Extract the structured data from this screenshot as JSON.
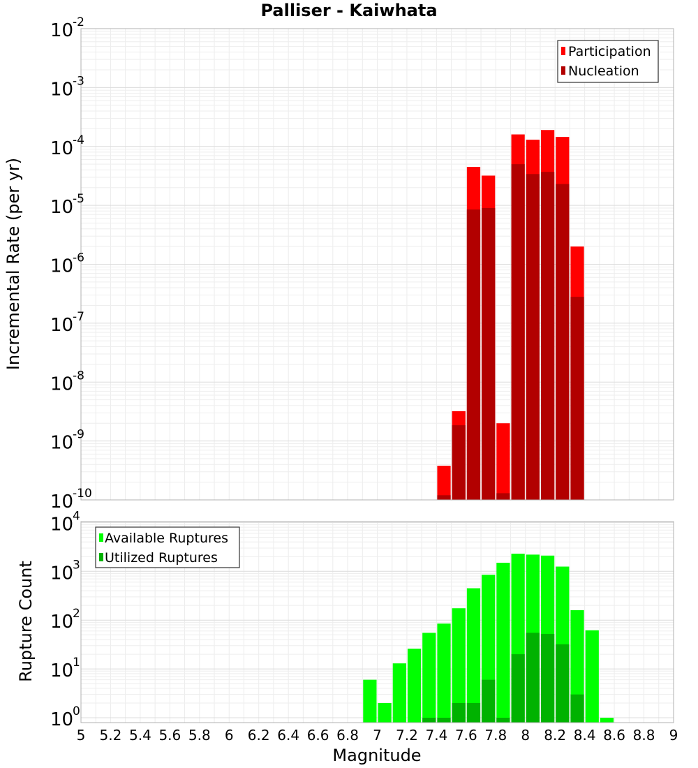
{
  "chart_data": [
    {
      "type": "bar",
      "title": "Palliser - Kaiwhata",
      "xlabel": "",
      "ylabel": "Incremental Rate (per yr)",
      "yscale": "log",
      "ylim_exp": [
        -10,
        -2
      ],
      "xlim": [
        5,
        9
      ],
      "bin_width": 0.1,
      "grid": true,
      "legend_position": "top-right",
      "y_tick_exponents": [
        "-2",
        "-3",
        "-4",
        "-5",
        "-6",
        "-7",
        "-8",
        "-9",
        "-10"
      ],
      "x": [
        7.45,
        7.55,
        7.65,
        7.75,
        7.85,
        7.95,
        8.05,
        8.15,
        8.25,
        8.35
      ],
      "series": [
        {
          "name": "Participation",
          "color": "#ff0000",
          "values": [
            3.8e-10,
            3.2e-09,
            4.5e-05,
            3.2e-05,
            2e-09,
            0.00016,
            0.00013,
            0.00019,
            0.000145,
            2e-06
          ]
        },
        {
          "name": "Nucleation",
          "color": "#b20000",
          "values": [
            1.2e-10,
            1.85e-09,
            8.5e-06,
            9e-06,
            1.3e-10,
            5e-05,
            3.4e-05,
            3.7e-05,
            2.3e-05,
            2.8e-07
          ]
        }
      ]
    },
    {
      "type": "bar",
      "title": "",
      "xlabel": "Magnitude",
      "ylabel": "Rupture Count",
      "yscale": "log",
      "ylim_exp": [
        0,
        4
      ],
      "xlim": [
        5,
        9
      ],
      "bin_width": 0.1,
      "grid": true,
      "legend_position": "top-left",
      "x_ticks": [
        "5",
        "5.2",
        "5.4",
        "5.6",
        "5.8",
        "6",
        "6.2",
        "6.4",
        "6.6",
        "6.8",
        "7",
        "7.2",
        "7.4",
        "7.6",
        "7.8",
        "8",
        "8.2",
        "8.4",
        "8.6",
        "8.8",
        "9"
      ],
      "y_tick_exponents": [
        "0",
        "1",
        "2",
        "3",
        "4"
      ],
      "x": [
        6.95,
        7.05,
        7.15,
        7.25,
        7.35,
        7.45,
        7.55,
        7.65,
        7.75,
        7.85,
        7.95,
        8.05,
        8.15,
        8.25,
        8.35,
        8.45,
        8.55
      ],
      "series": [
        {
          "name": "Available Ruptures",
          "color": "#00ff00",
          "values": [
            6,
            2,
            13,
            26,
            55,
            85,
            175,
            450,
            850,
            1500,
            2300,
            2200,
            2100,
            1250,
            160,
            62,
            1
          ]
        },
        {
          "name": "Utilized Ruptures",
          "color": "#00b200",
          "values": [
            0,
            0,
            0,
            0,
            1,
            1,
            2,
            2,
            6,
            1,
            20,
            55,
            52,
            32,
            3,
            0,
            0
          ]
        }
      ]
    }
  ]
}
